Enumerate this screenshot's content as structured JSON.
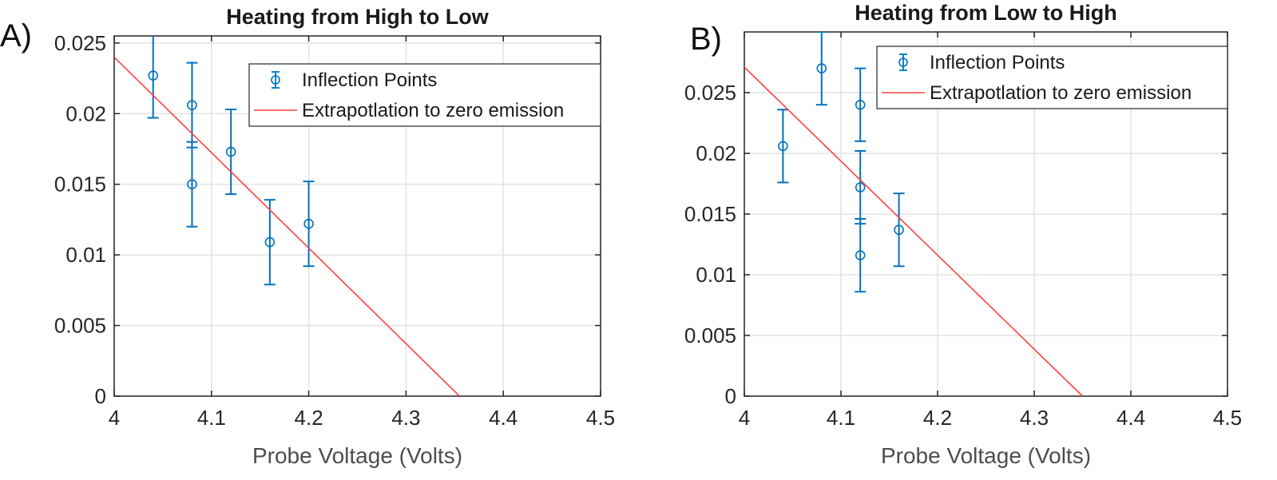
{
  "chart_data": [
    {
      "panel_label": "A)",
      "type": "scatter",
      "title": "Heating from High to Low",
      "xlabel": "Probe Voltage (Volts)",
      "ylabel": "",
      "xlim": [
        4,
        4.5
      ],
      "ylim": [
        0,
        0.0255
      ],
      "grid": true,
      "x_ticks": [
        4,
        4.1,
        4.2,
        4.3,
        4.4,
        4.5
      ],
      "x_tick_labels": [
        "4",
        "4.1",
        "4.2",
        "4.3",
        "4.4",
        "4.5"
      ],
      "y_ticks": [
        0,
        0.005,
        0.01,
        0.015,
        0.02,
        0.025
      ],
      "y_tick_labels": [
        "0",
        "0.005",
        "0.01",
        "0.015",
        "0.02",
        "0.025"
      ],
      "legend_position": "top-right",
      "series": [
        {
          "name": "Inflection Points",
          "kind": "errorbar",
          "color": "#0072BD",
          "points": [
            {
              "x": 4.04,
              "y": 0.0227,
              "err": 0.003
            },
            {
              "x": 4.08,
              "y": 0.0206,
              "err": 0.003
            },
            {
              "x": 4.08,
              "y": 0.015,
              "err": 0.003
            },
            {
              "x": 4.12,
              "y": 0.0173,
              "err": 0.003
            },
            {
              "x": 4.16,
              "y": 0.0109,
              "err": 0.003
            },
            {
              "x": 4.2,
              "y": 0.0122,
              "err": 0.003
            }
          ]
        },
        {
          "name": "Extrapotlation to zero emission",
          "kind": "line",
          "color": "#FF4040",
          "x": [
            4.0,
            4.355
          ],
          "y": [
            0.024,
            0.0
          ]
        }
      ]
    },
    {
      "panel_label": "B)",
      "type": "scatter",
      "title": "Heating from Low to High",
      "xlabel": "Probe Voltage (Volts)",
      "ylabel": "",
      "xlim": [
        4,
        4.5
      ],
      "ylim": [
        0,
        0.03
      ],
      "grid": true,
      "x_ticks": [
        4,
        4.1,
        4.2,
        4.3,
        4.4,
        4.5
      ],
      "x_tick_labels": [
        "4",
        "4.1",
        "4.2",
        "4.3",
        "4.4",
        "4.5"
      ],
      "y_ticks": [
        0,
        0.005,
        0.01,
        0.015,
        0.02,
        0.025
      ],
      "y_tick_labels": [
        "0",
        "0.005",
        "0.01",
        "0.015",
        "0.02",
        "0.025"
      ],
      "legend_position": "top-right",
      "series": [
        {
          "name": "Inflection Points",
          "kind": "errorbar",
          "color": "#0072BD",
          "points": [
            {
              "x": 4.04,
              "y": 0.0206,
              "err": 0.003
            },
            {
              "x": 4.08,
              "y": 0.027,
              "err": 0.003
            },
            {
              "x": 4.12,
              "y": 0.024,
              "err": 0.003
            },
            {
              "x": 4.12,
              "y": 0.0172,
              "err": 0.003
            },
            {
              "x": 4.12,
              "y": 0.0116,
              "err": 0.003
            },
            {
              "x": 4.16,
              "y": 0.0137,
              "err": 0.003
            }
          ]
        },
        {
          "name": "Extrapotlation to zero emission",
          "kind": "line",
          "color": "#FF4040",
          "x": [
            4.0,
            4.35
          ],
          "y": [
            0.0271,
            0.0
          ]
        }
      ]
    }
  ]
}
